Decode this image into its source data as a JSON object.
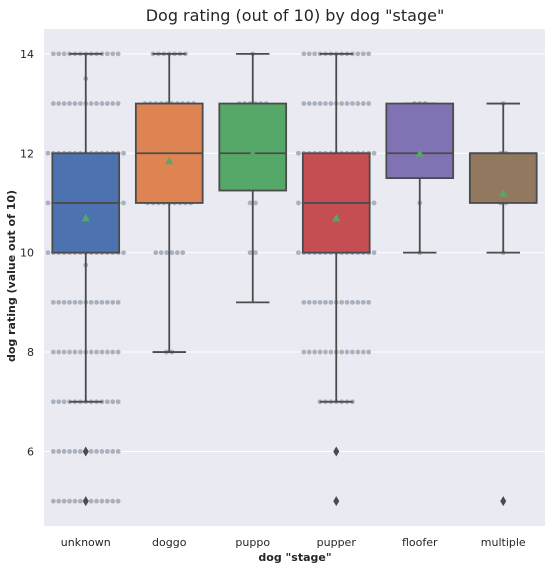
{
  "chart_data": {
    "type": "box",
    "title": "Dog rating (out of 10) by dog \"stage\"",
    "xlabel": "dog \"stage\"",
    "ylabel": "dog rating (value out of 10)",
    "ylim": [
      4.5,
      14.5
    ],
    "yticks": [
      6,
      8,
      10,
      12,
      14
    ],
    "grid": true,
    "background": "#eaeaf2",
    "categories": [
      {
        "label": "unknown",
        "color": "#4c72b0",
        "q1": 10,
        "median": 11,
        "q3": 12,
        "whisker_low": 7,
        "whisker_high": 14,
        "mean": 10.7,
        "outliers": [
          6,
          5
        ]
      },
      {
        "label": "doggo",
        "color": "#dd8452",
        "q1": 11,
        "median": 12,
        "q3": 13,
        "whisker_low": 8,
        "whisker_high": 14,
        "mean": 11.85,
        "outliers": []
      },
      {
        "label": "puppo",
        "color": "#55a868",
        "q1": 11.25,
        "median": 12,
        "q3": 13,
        "whisker_low": 9,
        "whisker_high": 14,
        "mean": 12.0,
        "outliers": []
      },
      {
        "label": "pupper",
        "color": "#c44e52",
        "q1": 10,
        "median": 11,
        "q3": 12,
        "whisker_low": 7,
        "whisker_high": 14,
        "mean": 10.7,
        "outliers": [
          6,
          5
        ]
      },
      {
        "label": "floofer",
        "color": "#8172b3",
        "q1": 11.5,
        "median": 12,
        "q3": 13,
        "whisker_low": 10,
        "whisker_high": 13,
        "mean": 12.0,
        "outliers": []
      },
      {
        "label": "multiple",
        "color": "#937860",
        "q1": 11,
        "median": 12,
        "q3": 12,
        "whisker_low": 10,
        "whisker_high": 13,
        "mean": 11.2,
        "outliers": [
          5
        ]
      }
    ],
    "swarm": [
      {
        "rows": [
          {
            "y": 14,
            "n": 13
          },
          {
            "y": 13.5,
            "n": 1
          },
          {
            "y": 13,
            "n": 13
          },
          {
            "y": 12,
            "n": 15
          },
          {
            "y": 11,
            "n": 15
          },
          {
            "y": 10,
            "n": 15
          },
          {
            "y": 9.75,
            "n": 1
          },
          {
            "y": 9,
            "n": 13
          },
          {
            "y": 8,
            "n": 13
          },
          {
            "y": 7,
            "n": 13
          },
          {
            "y": 6,
            "n": 13
          },
          {
            "y": 5,
            "n": 13
          }
        ]
      },
      {
        "rows": [
          {
            "y": 14,
            "n": 7
          },
          {
            "y": 13,
            "n": 10
          },
          {
            "y": 12,
            "n": 9
          },
          {
            "y": 11,
            "n": 9
          },
          {
            "y": 10,
            "n": 6
          },
          {
            "y": 8,
            "n": 2
          }
        ]
      },
      {
        "rows": [
          {
            "y": 14,
            "n": 1
          },
          {
            "y": 13,
            "n": 6
          },
          {
            "y": 12,
            "n": 3
          },
          {
            "y": 11,
            "n": 2
          },
          {
            "y": 10,
            "n": 2
          }
        ]
      },
      {
        "rows": [
          {
            "y": 14,
            "n": 13
          },
          {
            "y": 13,
            "n": 13
          },
          {
            "y": 12,
            "n": 15
          },
          {
            "y": 11,
            "n": 15
          },
          {
            "y": 10,
            "n": 15
          },
          {
            "y": 9,
            "n": 13
          },
          {
            "y": 8,
            "n": 13
          },
          {
            "y": 7,
            "n": 7
          }
        ]
      },
      {
        "rows": [
          {
            "y": 13,
            "n": 3
          },
          {
            "y": 12,
            "n": 3
          },
          {
            "y": 11,
            "n": 1
          },
          {
            "y": 10,
            "n": 1
          }
        ]
      },
      {
        "rows": [
          {
            "y": 13,
            "n": 1
          },
          {
            "y": 12,
            "n": 2
          },
          {
            "y": 11,
            "n": 2
          },
          {
            "y": 10,
            "n": 1
          }
        ]
      }
    ],
    "colors": {
      "grid": "#ffffff",
      "box_edge": "#4b4b4b",
      "swarm": "#a2abb8",
      "mean_marker": "#55a868",
      "outlier": "#4b4b4b"
    }
  }
}
